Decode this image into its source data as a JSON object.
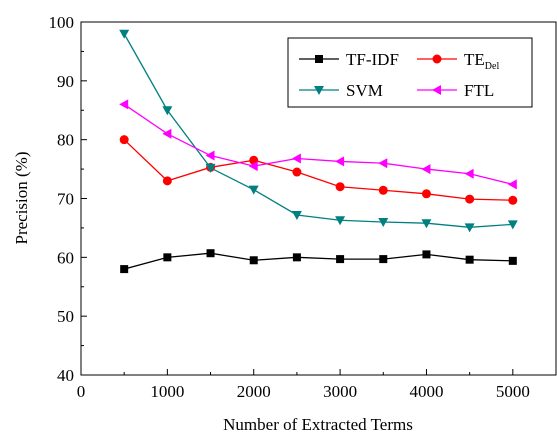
{
  "chart_data": {
    "type": "line",
    "xlabel": "Number of Extracted Terms",
    "ylabel": "Precision (%)",
    "xlim": [
      0,
      5500
    ],
    "ylim": [
      40,
      100
    ],
    "x_ticks": [
      0,
      1000,
      2000,
      3000,
      4000,
      5000
    ],
    "y_ticks": [
      40,
      50,
      60,
      70,
      80,
      90,
      100
    ],
    "x": [
      500,
      1000,
      1500,
      2000,
      2500,
      3000,
      3500,
      4000,
      4500,
      5000
    ],
    "grid": false,
    "legend_position": "top-right",
    "series": [
      {
        "name": "TF-IDF",
        "name_sub": "",
        "color": "#000000",
        "marker": "square",
        "values": [
          58.0,
          60.0,
          60.7,
          59.5,
          60.0,
          59.7,
          59.7,
          60.5,
          59.6,
          59.4
        ]
      },
      {
        "name": "TE",
        "name_sub": "Del",
        "color": "#ff0000",
        "marker": "circle",
        "values": [
          80.0,
          73.0,
          75.3,
          76.5,
          74.5,
          72.0,
          71.4,
          70.8,
          69.9,
          69.7
        ]
      },
      {
        "name": "SVM",
        "name_sub": "",
        "color": "#008080",
        "marker": "triangle-down",
        "values": [
          98.0,
          85.0,
          75.2,
          71.5,
          67.2,
          66.3,
          66.0,
          65.8,
          65.1,
          65.6
        ]
      },
      {
        "name": "FTL",
        "name_sub": "",
        "color": "#ff00ff",
        "marker": "triangle-left",
        "values": [
          86.0,
          81.0,
          77.3,
          75.5,
          76.8,
          76.3,
          76.0,
          75.0,
          74.2,
          72.4
        ]
      }
    ]
  }
}
